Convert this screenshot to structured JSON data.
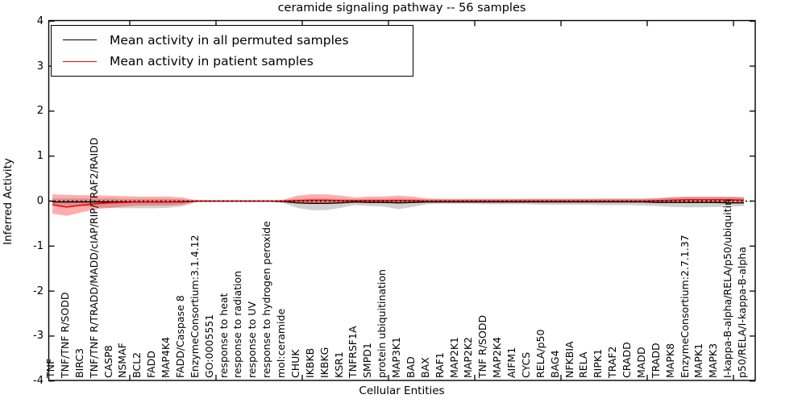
{
  "chart_data": {
    "type": "line",
    "title": "ceramide signaling pathway -- 56 samples",
    "xlabel": "Cellular Entities",
    "ylabel": "Inferred Activity",
    "ylim": [
      -4,
      4
    ],
    "yticks": [
      4,
      3,
      2,
      1,
      0,
      -1,
      -2,
      -3,
      -4
    ],
    "grid": false,
    "legend_position": "upper left",
    "has_zero_reference_line": true,
    "categories": [
      "TNF",
      "TNF/TNF R/SODD",
      "BIRC3",
      "TNF/TNF R/TRADD/MADD/cIAP/RIP/TRAF2/RAIDD",
      "CASP8",
      "NSMAF",
      "BCL2",
      "FADD",
      "MAP4K4",
      "FADD/Caspase 8",
      "EnzymeConsortium:3.1.4.12",
      "GO:0005551",
      "response to heat",
      "response to radiation",
      "response to UV",
      "response to hydrogen peroxide",
      "mol:ceramide",
      "CHUK",
      "IKBKB",
      "IKBKG",
      "KSR1",
      "TNFRSF1A",
      "SMPD1",
      "protein ubiquitination",
      "MAP3K1",
      "BAD",
      "BAX",
      "RAF1",
      "MAP2K1",
      "MAP2K2",
      "TNF R/SODD",
      "MAP2K4",
      "AIFM1",
      "CYCS",
      "RELA/p50",
      "BAG4",
      "NFKBIA",
      "RELA",
      "RIPK1",
      "TRAF2",
      "CRADD",
      "MADD",
      "TRADD",
      "MAPK8",
      "EnzymeConsortium:2.7.1.37",
      "MAPK1",
      "MAPK3",
      "I-kappa-B-alpha/RELA/p50/ubiquitin",
      "p50/RELA/I-kappa-B-alpha"
    ],
    "series": [
      {
        "name": "Mean activity in all permuted samples",
        "color": "#000000",
        "band_color": "rgba(0,0,0,0.18)",
        "values": [
          -0.02,
          -0.02,
          -0.02,
          -0.02,
          -0.02,
          -0.02,
          -0.02,
          -0.02,
          -0.02,
          -0.02,
          0,
          0,
          0,
          0,
          0,
          0,
          -0.01,
          -0.04,
          -0.05,
          -0.05,
          -0.04,
          -0.02,
          -0.03,
          -0.03,
          -0.04,
          -0.03,
          -0.02,
          -0.02,
          -0.02,
          -0.02,
          -0.02,
          -0.02,
          -0.02,
          -0.02,
          -0.02,
          -0.02,
          -0.02,
          -0.02,
          -0.02,
          -0.02,
          -0.02,
          -0.02,
          -0.03,
          -0.03,
          -0.03,
          -0.03,
          -0.03,
          -0.04,
          -0.04
        ],
        "band_upper": [
          0.06,
          0.06,
          0.06,
          0.06,
          0.06,
          0.05,
          0.05,
          0.05,
          0.05,
          0.04,
          0.01,
          0.01,
          0.01,
          0.01,
          0.01,
          0.01,
          0.02,
          0.05,
          0.06,
          0.06,
          0.05,
          0.04,
          0.05,
          0.05,
          0.06,
          0.05,
          0.04,
          0.04,
          0.04,
          0.04,
          0.04,
          0.04,
          0.04,
          0.05,
          0.05,
          0.05,
          0.05,
          0.05,
          0.06,
          0.06,
          0.06,
          0.06,
          0.07,
          0.09,
          0.1,
          0.1,
          0.1,
          0.1,
          0.09
        ],
        "band_lower": [
          -0.09,
          -0.1,
          -0.12,
          -0.14,
          -0.15,
          -0.16,
          -0.16,
          -0.16,
          -0.15,
          -0.12,
          -0.02,
          -0.01,
          -0.01,
          -0.01,
          -0.01,
          -0.01,
          -0.04,
          -0.15,
          -0.2,
          -0.2,
          -0.15,
          -0.09,
          -0.11,
          -0.12,
          -0.18,
          -0.13,
          -0.07,
          -0.06,
          -0.06,
          -0.06,
          -0.07,
          -0.07,
          -0.07,
          -0.07,
          -0.08,
          -0.08,
          -0.08,
          -0.08,
          -0.09,
          -0.09,
          -0.09,
          -0.1,
          -0.11,
          -0.13,
          -0.14,
          -0.14,
          -0.13,
          -0.13,
          -0.11
        ]
      },
      {
        "name": "Mean activity in patient samples",
        "color": "#ff0000",
        "band_color": "rgba(255,0,0,0.32)",
        "values": [
          -0.08,
          -0.13,
          -0.09,
          -0.06,
          -0.04,
          -0.03,
          -0.02,
          -0.02,
          -0.02,
          -0.01,
          0,
          0,
          0,
          0,
          0,
          0,
          0,
          0.01,
          0.02,
          0.02,
          0.01,
          0.01,
          0.01,
          0.01,
          0.01,
          0.01,
          0,
          0,
          0,
          0,
          0,
          0,
          0,
          0,
          0,
          0,
          0,
          0,
          0,
          0,
          0,
          0,
          0.01,
          0.02,
          0.03,
          0.03,
          0.03,
          0.03,
          0.02
        ],
        "band_upper": [
          0.15,
          0.14,
          0.13,
          0.13,
          0.12,
          0.11,
          0.1,
          0.1,
          0.1,
          0.08,
          0.02,
          0.01,
          0.01,
          0.01,
          0.01,
          0.01,
          0.03,
          0.12,
          0.15,
          0.15,
          0.12,
          0.08,
          0.1,
          0.1,
          0.12,
          0.1,
          0.06,
          0.05,
          0.05,
          0.05,
          0.05,
          0.05,
          0.05,
          0.05,
          0.05,
          0.05,
          0.05,
          0.05,
          0.05,
          0.05,
          0.05,
          0.05,
          0.06,
          0.08,
          0.09,
          0.09,
          0.09,
          0.09,
          0.08
        ],
        "band_lower": [
          -0.28,
          -0.33,
          -0.25,
          -0.18,
          -0.15,
          -0.12,
          -0.1,
          -0.1,
          -0.1,
          -0.08,
          -0.02,
          -0.01,
          -0.01,
          -0.01,
          -0.01,
          -0.01,
          -0.02,
          -0.05,
          -0.06,
          -0.06,
          -0.05,
          -0.03,
          -0.04,
          -0.04,
          -0.05,
          -0.04,
          -0.02,
          -0.02,
          -0.02,
          -0.02,
          -0.02,
          -0.02,
          -0.02,
          -0.02,
          -0.02,
          -0.02,
          -0.02,
          -0.02,
          -0.02,
          -0.02,
          -0.02,
          -0.02,
          -0.03,
          -0.03,
          -0.03,
          -0.03,
          -0.03,
          -0.03,
          -0.03
        ]
      }
    ]
  }
}
